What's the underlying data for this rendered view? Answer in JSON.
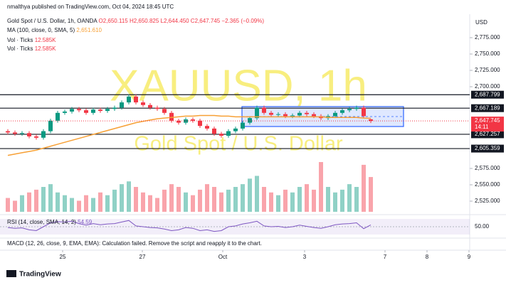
{
  "header": {
    "publisher": "nmalthya published on TradingView.com, Oct 04, 2024 18:45 UTC",
    "currency": "USD",
    "brand": "TradingView"
  },
  "legend": {
    "symbol": "Gold Spot / U.S. Dollar, 1h, OANDA",
    "ohlc": "O2,650.115 H2,650.825 L2,644.450 C2,647.745 −2.365 (−0.09%)",
    "ma": "MA (100, close, 0, SMA, 5)",
    "ma_value": "2,651.610",
    "vol1": "Vol · Ticks",
    "vol1_value": "12.585K",
    "vol2": "Vol · Ticks",
    "vol2_value": "12.585K",
    "rsi": "RSI (14, close, SMA, 14, 2)",
    "rsi_value": "54.59",
    "macd": "MACD (12, 26, close, 9, EMA, EMA): Calculation failed. Remove the script and reapply it to the chart."
  },
  "watermark": {
    "symbol": "XAUUSD, 1h",
    "name": "Gold Spot / U.S. Dollar"
  },
  "chart_data": {
    "type": "candlestick",
    "up_color": "#089981",
    "down_color": "#f23645",
    "ma_color": "#f7a035",
    "rsi_color": "#7e57c2",
    "ylim": [
      2500,
      2800
    ],
    "yticks": [
      {
        "value": 2775,
        "label": "2,775.000"
      },
      {
        "value": 2750,
        "label": "2,750.000"
      },
      {
        "value": 2725,
        "label": "2,725.000"
      },
      {
        "value": 2700,
        "label": "2,700.000"
      },
      {
        "value": 2575,
        "label": "2,575.000"
      },
      {
        "value": 2550,
        "label": "2,550.000"
      },
      {
        "value": 2525,
        "label": "2,525.000"
      }
    ],
    "levels": [
      {
        "value": 2687.799,
        "label": "2,687.799"
      },
      {
        "value": 2667.189,
        "label": "2,667.189"
      },
      {
        "value": 2627.257,
        "label": "2,627.257"
      },
      {
        "value": 2605.359,
        "label": "2,605.359"
      }
    ],
    "last": {
      "value": 2647.745,
      "label": "2,647.745",
      "time": "14:11"
    },
    "xticks": [
      {
        "value": 7.7,
        "label": "25"
      },
      {
        "value": 18.9,
        "label": "27"
      },
      {
        "value": 30.2,
        "label": "Oct"
      },
      {
        "value": 41.7,
        "label": "3"
      },
      {
        "value": 53,
        "label": "7"
      },
      {
        "value": 58.9,
        "label": "8"
      },
      {
        "value": 64.8,
        "label": "9"
      }
    ],
    "open": [
      2632,
      2630,
      2628,
      2629,
      2624,
      2622,
      2632,
      2648,
      2660,
      2662,
      2666,
      2664,
      2660,
      2665,
      2663,
      2666,
      2668,
      2676,
      2685,
      2676,
      2672,
      2668,
      2666,
      2660,
      2648,
      2645,
      2650,
      2648,
      2640,
      2636,
      2628,
      2625,
      2632,
      2636,
      2645,
      2652,
      2668,
      2660,
      2657,
      2658,
      2655,
      2656,
      2660,
      2658,
      2655,
      2652,
      2655,
      2660,
      2664,
      2666,
      2668,
      2650.115
    ],
    "high": [
      2635,
      2633,
      2632,
      2632,
      2627,
      2635,
      2651,
      2663,
      2665,
      2669,
      2669,
      2667,
      2668,
      2668,
      2669,
      2671,
      2679,
      2688,
      2688,
      2679,
      2675,
      2671,
      2669,
      2663,
      2651,
      2653,
      2653,
      2651,
      2643,
      2639,
      2631,
      2635,
      2639,
      2648,
      2655,
      2671,
      2671,
      2663,
      2661,
      2661,
      2659,
      2663,
      2663,
      2661,
      2658,
      2658,
      2663,
      2667,
      2669,
      2671,
      2671,
      2650.825
    ],
    "low": [
      2627,
      2625,
      2625,
      2621,
      2619,
      2619,
      2629,
      2645,
      2657,
      2659,
      2661,
      2657,
      2657,
      2660,
      2660,
      2663,
      2665,
      2673,
      2673,
      2669,
      2665,
      2663,
      2657,
      2645,
      2642,
      2642,
      2645,
      2637,
      2633,
      2625,
      2622,
      2622,
      2629,
      2633,
      2642,
      2649,
      2657,
      2654,
      2654,
      2652,
      2652,
      2653,
      2655,
      2652,
      2649,
      2649,
      2652,
      2657,
      2661,
      2663,
      2652,
      2644.45
    ],
    "close": [
      2630,
      2628,
      2629,
      2624,
      2622,
      2632,
      2648,
      2660,
      2662,
      2666,
      2664,
      2660,
      2665,
      2663,
      2666,
      2668,
      2676,
      2685,
      2676,
      2672,
      2668,
      2666,
      2660,
      2648,
      2645,
      2650,
      2648,
      2640,
      2636,
      2628,
      2625,
      2632,
      2636,
      2645,
      2652,
      2668,
      2660,
      2657,
      2658,
      2655,
      2656,
      2660,
      2658,
      2655,
      2652,
      2655,
      2660,
      2664,
      2666,
      2668,
      2655,
      2647.745
    ],
    "volume": [
      5,
      4,
      6,
      7,
      8,
      9,
      10,
      7,
      6,
      5,
      4,
      6,
      5,
      7,
      6,
      8,
      10,
      11,
      9,
      7,
      6,
      5,
      8,
      10,
      9,
      7,
      6,
      8,
      10,
      9,
      7,
      8,
      9,
      10,
      12,
      13,
      9,
      7,
      6,
      8,
      7,
      9,
      10,
      8,
      18,
      9,
      7,
      8,
      10,
      9,
      17,
      12.585
    ],
    "ma": [
      2595,
      2597,
      2599,
      2601,
      2603,
      2606,
      2609,
      2612,
      2615,
      2618,
      2621,
      2624,
      2627,
      2630,
      2633,
      2636,
      2639,
      2642,
      2645,
      2647,
      2649,
      2651,
      2652,
      2653,
      2654,
      2655,
      2655,
      2656,
      2656,
      2656,
      2655,
      2655,
      2654,
      2654,
      2654,
      2654,
      2654,
      2654,
      2654,
      2654,
      2654,
      2654,
      2654,
      2654,
      2654,
      2653,
      2653,
      2653,
      2653,
      2653,
      2652,
      2651.61
    ],
    "rsi": [
      48,
      46,
      47,
      42,
      40,
      50,
      60,
      63,
      62,
      64,
      58,
      54,
      58,
      55,
      57,
      58,
      62,
      66,
      52,
      50,
      48,
      47,
      44,
      40,
      42,
      48,
      46,
      40,
      42,
      38,
      40,
      50,
      52,
      57,
      60,
      64,
      52,
      50,
      51,
      48,
      50,
      54,
      51,
      48,
      46,
      50,
      55,
      57,
      58,
      60,
      45,
      54.59
    ],
    "rsi_ylim": [
      30,
      70
    ],
    "rsi_yticks": [
      {
        "value": 50,
        "label": "50.00"
      }
    ]
  }
}
